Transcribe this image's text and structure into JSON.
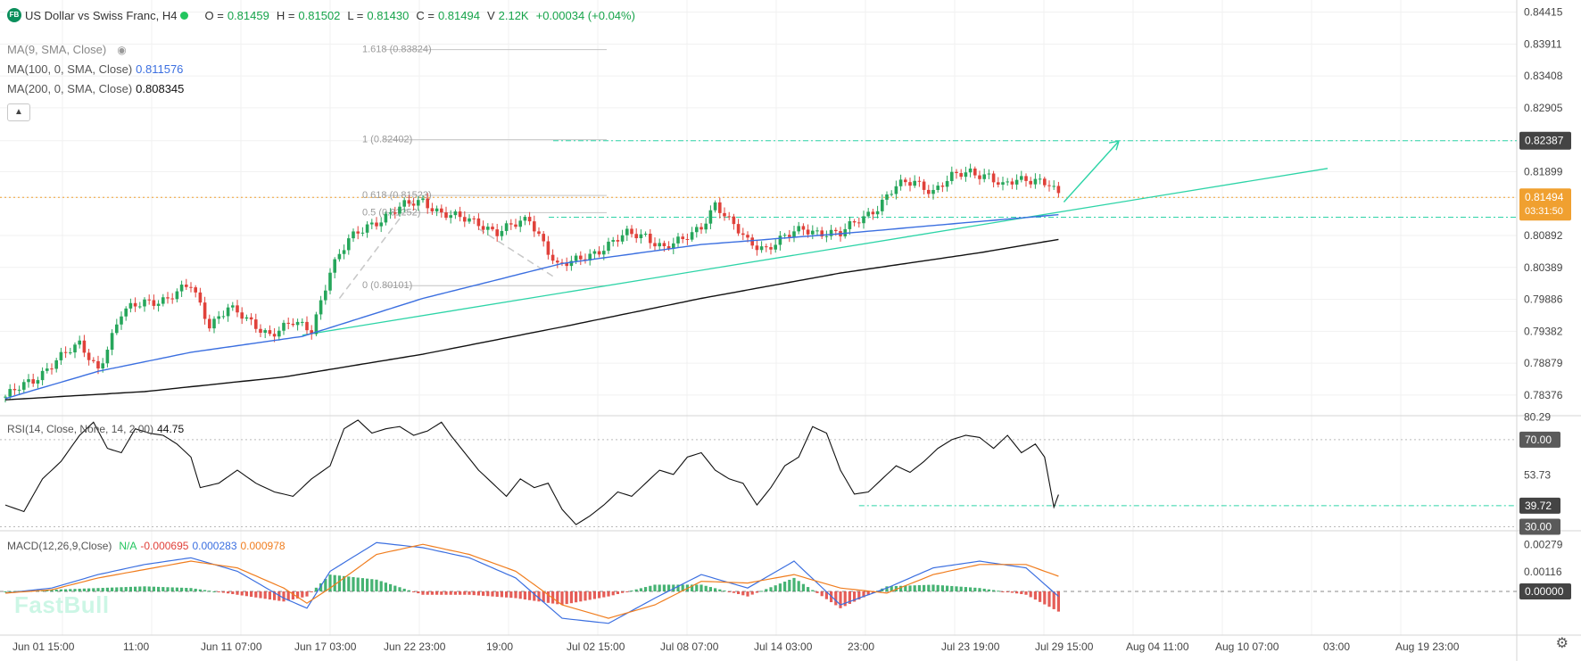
{
  "header": {
    "symbol_badge": "FB",
    "title": "US Dollar vs Swiss Franc, H4",
    "ohlc": [
      {
        "k": "O =",
        "v": "0.81459"
      },
      {
        "k": "H =",
        "v": "0.81502"
      },
      {
        "k": "L =",
        "v": "0.81430"
      },
      {
        "k": "C =",
        "v": "0.81494"
      },
      {
        "k": "V",
        "v": "2.12K"
      }
    ],
    "change": "+0.00034 (+0.04%)"
  },
  "indicators": {
    "ma9": {
      "label": "MA(9, SMA, Close)",
      "value": ""
    },
    "ma100": {
      "label": "MA(100, 0, SMA, Close)",
      "value": "0.811576",
      "color": "#3b6fe0"
    },
    "ma200": {
      "label": "MA(200, 0, SMA, Close)",
      "value": "0.808345",
      "color": "#111111"
    },
    "rsi": {
      "label": "RSI(14, Close, None, 14, 2.00)",
      "value": "44.75"
    },
    "macd": {
      "label": "MACD(12,26,9,Close)",
      "v1": "N/A",
      "v2": "-0.000695",
      "v3": "0.000283",
      "v4": "0.000978"
    }
  },
  "colors": {
    "up": "#26a65b",
    "down": "#e0413a",
    "ma100": "#3b6fe0",
    "ma200": "#111111",
    "trend": "#2dd4a7",
    "fib": "#aaaaaa",
    "price_tag": "#f0a030",
    "dark_tag": "#444444",
    "macd_line": "#3b6fe0",
    "signal_line": "#f07d1e"
  },
  "watermark": "FastBull",
  "chart_data": {
    "type": "candlestick",
    "timeframe": "H4",
    "x_tick_labels": [
      "Jun 01 15:00",
      "11:00",
      "Jun 11 07:00",
      "Jun 17 03:00",
      "Jun 22 23:00",
      "19:00",
      "Jul 02 15:00",
      "Jul 08 07:00",
      "Jul 14 03:00",
      "23:00",
      "Jul 23 19:00",
      "Jul 29 15:00",
      "Aug 04 11:00",
      "Aug 10 07:00",
      "03:00",
      "Aug 19 23:00"
    ],
    "price_axis": {
      "ticks": [
        "0.84415",
        "0.83911",
        "0.83408",
        "0.82905",
        "0.82387",
        "0.81899",
        "0.81494",
        "0.80892",
        "0.80389",
        "0.79886",
        "0.79382",
        "0.78879",
        "0.78376"
      ],
      "current_price": "0.81494",
      "countdown": "03:31:50",
      "marked_level": "0.82387",
      "ylim": [
        0.7805,
        0.8455
      ]
    },
    "price_path": [
      [
        0,
        0.7835
      ],
      [
        6,
        0.786
      ],
      [
        11,
        0.7895
      ],
      [
        16,
        0.7915
      ],
      [
        20,
        0.788
      ],
      [
        25,
        0.7965
      ],
      [
        30,
        0.7985
      ],
      [
        35,
        0.799
      ],
      [
        40,
        0.801
      ],
      [
        44,
        0.795
      ],
      [
        48,
        0.7975
      ],
      [
        52,
        0.7955
      ],
      [
        57,
        0.7935
      ],
      [
        62,
        0.795
      ],
      [
        66,
        0.794
      ],
      [
        70,
        0.8035
      ],
      [
        74,
        0.808
      ],
      [
        78,
        0.8105
      ],
      [
        82,
        0.812
      ],
      [
        86,
        0.8135
      ],
      [
        90,
        0.8145
      ],
      [
        94,
        0.8125
      ],
      [
        98,
        0.8115
      ],
      [
        102,
        0.811
      ],
      [
        106,
        0.8095
      ],
      [
        110,
        0.8105
      ],
      [
        113,
        0.8115
      ],
      [
        116,
        0.808
      ],
      [
        119,
        0.804
      ],
      [
        122,
        0.8045
      ],
      [
        126,
        0.806
      ],
      [
        130,
        0.8075
      ],
      [
        134,
        0.809
      ],
      [
        138,
        0.809
      ],
      [
        142,
        0.807
      ],
      [
        146,
        0.808
      ],
      [
        150,
        0.8105
      ],
      [
        153,
        0.814
      ],
      [
        156,
        0.811
      ],
      [
        160,
        0.808
      ],
      [
        164,
        0.807
      ],
      [
        168,
        0.8085
      ],
      [
        172,
        0.81
      ],
      [
        176,
        0.8095
      ],
      [
        180,
        0.809
      ],
      [
        184,
        0.8115
      ],
      [
        188,
        0.8135
      ],
      [
        192,
        0.8165
      ],
      [
        196,
        0.8175
      ],
      [
        200,
        0.816
      ],
      [
        204,
        0.818
      ],
      [
        208,
        0.819
      ],
      [
        212,
        0.8185
      ],
      [
        215,
        0.8165
      ],
      [
        218,
        0.8175
      ],
      [
        222,
        0.818
      ],
      [
        225,
        0.8172
      ],
      [
        227,
        0.815
      ]
    ],
    "ma100_path": [
      [
        0,
        0.7832
      ],
      [
        20,
        0.7875
      ],
      [
        40,
        0.7905
      ],
      [
        64,
        0.793
      ],
      [
        90,
        0.799
      ],
      [
        120,
        0.8045
      ],
      [
        150,
        0.8075
      ],
      [
        180,
        0.8092
      ],
      [
        200,
        0.8105
      ],
      [
        227,
        0.8122
      ]
    ],
    "ma200_path": [
      [
        0,
        0.783
      ],
      [
        30,
        0.7843
      ],
      [
        60,
        0.7866
      ],
      [
        90,
        0.7902
      ],
      [
        120,
        0.7945
      ],
      [
        150,
        0.799
      ],
      [
        180,
        0.803
      ],
      [
        210,
        0.8062
      ],
      [
        227,
        0.8083
      ]
    ],
    "fibonacci": [
      {
        "label": "1.618 (0.83824)",
        "value": 0.83824
      },
      {
        "label": "1 (0.82402)",
        "value": 0.82402
      },
      {
        "label": "0.618 (0.81523)",
        "value": 0.81523
      },
      {
        "label": "0.5 (0.81252)",
        "value": 0.81252
      },
      {
        "label": "0 (0.80101)",
        "value": 0.80101
      }
    ],
    "rsi": {
      "ticks": [
        "80.29",
        "70.00",
        "53.73",
        "39.72",
        "30.00"
      ],
      "ylim": [
        29,
        81
      ],
      "overbought": 70,
      "oversold": 30,
      "marked_level": 39.72,
      "path": [
        [
          0,
          40
        ],
        [
          4,
          37
        ],
        [
          8,
          52
        ],
        [
          12,
          60
        ],
        [
          16,
          72
        ],
        [
          19,
          78
        ],
        [
          22,
          66
        ],
        [
          25,
          64
        ],
        [
          28,
          75
        ],
        [
          31,
          73
        ],
        [
          34,
          72
        ],
        [
          37,
          68
        ],
        [
          40,
          62
        ],
        [
          42,
          48
        ],
        [
          46,
          50
        ],
        [
          50,
          56
        ],
        [
          54,
          50
        ],
        [
          58,
          46
        ],
        [
          62,
          44
        ],
        [
          66,
          52
        ],
        [
          70,
          58
        ],
        [
          73,
          75
        ],
        [
          76,
          79
        ],
        [
          79,
          73
        ],
        [
          82,
          75
        ],
        [
          85,
          76
        ],
        [
          88,
          72
        ],
        [
          91,
          74
        ],
        [
          94,
          78
        ],
        [
          96,
          72
        ],
        [
          99,
          64
        ],
        [
          102,
          56
        ],
        [
          105,
          50
        ],
        [
          108,
          44
        ],
        [
          111,
          52
        ],
        [
          114,
          48
        ],
        [
          117,
          50
        ],
        [
          120,
          38
        ],
        [
          123,
          31
        ],
        [
          126,
          35
        ],
        [
          129,
          40
        ],
        [
          132,
          46
        ],
        [
          135,
          44
        ],
        [
          138,
          50
        ],
        [
          141,
          56
        ],
        [
          144,
          54
        ],
        [
          147,
          62
        ],
        [
          150,
          64
        ],
        [
          153,
          56
        ],
        [
          156,
          52
        ],
        [
          159,
          50
        ],
        [
          162,
          40
        ],
        [
          165,
          48
        ],
        [
          168,
          58
        ],
        [
          171,
          62
        ],
        [
          174,
          76
        ],
        [
          177,
          73
        ],
        [
          180,
          56
        ],
        [
          183,
          45
        ],
        [
          186,
          46
        ],
        [
          189,
          52
        ],
        [
          192,
          58
        ],
        [
          195,
          55
        ],
        [
          198,
          60
        ],
        [
          201,
          66
        ],
        [
          204,
          70
        ],
        [
          207,
          72
        ],
        [
          210,
          71
        ],
        [
          213,
          66
        ],
        [
          216,
          72
        ],
        [
          219,
          64
        ],
        [
          222,
          68
        ],
        [
          224,
          62
        ],
        [
          226,
          39
        ],
        [
          227,
          44.75
        ]
      ]
    },
    "macd": {
      "ticks": [
        "0.00279",
        "0.00116",
        "0.00000"
      ],
      "ylim": [
        -0.0026,
        0.0035
      ],
      "macd_path": [
        [
          0,
          -0.0001
        ],
        [
          10,
          0.0002
        ],
        [
          20,
          0.001
        ],
        [
          30,
          0.0016
        ],
        [
          40,
          0.002
        ],
        [
          50,
          0.0012
        ],
        [
          60,
          -0.0004
        ],
        [
          65,
          -0.001
        ],
        [
          70,
          0.0012
        ],
        [
          80,
          0.0029
        ],
        [
          90,
          0.0026
        ],
        [
          100,
          0.002
        ],
        [
          110,
          0.0008
        ],
        [
          120,
          -0.0016
        ],
        [
          130,
          -0.0019
        ],
        [
          140,
          -0.0004
        ],
        [
          150,
          0.001
        ],
        [
          160,
          0.0002
        ],
        [
          170,
          0.0018
        ],
        [
          180,
          -0.0008
        ],
        [
          190,
          0.0002
        ],
        [
          200,
          0.0014
        ],
        [
          210,
          0.0018
        ],
        [
          220,
          0.0014
        ],
        [
          227,
          -0.0003
        ]
      ],
      "signal_path": [
        [
          0,
          -0.0001
        ],
        [
          10,
          0.0001
        ],
        [
          20,
          0.0008
        ],
        [
          30,
          0.0013
        ],
        [
          40,
          0.0018
        ],
        [
          50,
          0.0014
        ],
        [
          60,
          0.0002
        ],
        [
          65,
          -0.0007
        ],
        [
          70,
          0.0002
        ],
        [
          80,
          0.0022
        ],
        [
          90,
          0.0028
        ],
        [
          100,
          0.0022
        ],
        [
          110,
          0.0012
        ],
        [
          120,
          -0.0008
        ],
        [
          130,
          -0.0016
        ],
        [
          140,
          -0.0008
        ],
        [
          150,
          0.0006
        ],
        [
          160,
          0.0005
        ],
        [
          170,
          0.001
        ],
        [
          180,
          0.0002
        ],
        [
          190,
          -0.0001
        ],
        [
          200,
          0.001
        ],
        [
          210,
          0.0016
        ],
        [
          220,
          0.0016
        ],
        [
          227,
          0.0009
        ]
      ]
    }
  }
}
